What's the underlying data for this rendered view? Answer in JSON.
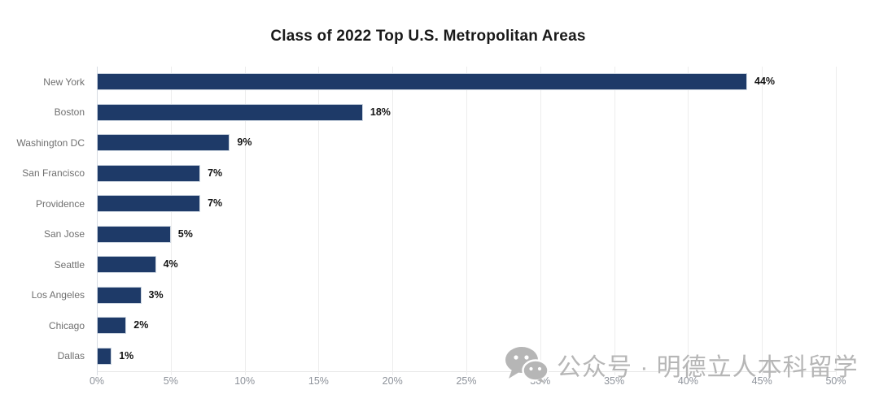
{
  "title": "Class of 2022 Top U.S. Metropolitan Areas",
  "chart_data": {
    "type": "bar",
    "orientation": "horizontal",
    "title": "Class of 2022 Top U.S. Metropolitan Areas",
    "categories": [
      "New York",
      "Boston",
      "Washington DC",
      "San Francisco",
      "Providence",
      "San Jose",
      "Seattle",
      "Los Angeles",
      "Chicago",
      "Dallas"
    ],
    "values": [
      44,
      18,
      9,
      7,
      7,
      5,
      4,
      3,
      2,
      1
    ],
    "value_labels": [
      "44%",
      "18%",
      "9%",
      "7%",
      "7%",
      "5%",
      "4%",
      "3%",
      "2%",
      "1%"
    ],
    "xlabel": "",
    "ylabel": "",
    "xlim": [
      0,
      50
    ],
    "x_tick_values": [
      0,
      5,
      10,
      15,
      20,
      25,
      30,
      35,
      40,
      45,
      50
    ],
    "x_tick_labels": [
      "0%",
      "5%",
      "10%",
      "15%",
      "20%",
      "25%",
      "30%",
      "35%",
      "40%",
      "45%",
      "50%"
    ],
    "grid": "vertical-on",
    "legend": "none",
    "bar_color": "#1e3a68"
  },
  "watermark": {
    "icon": "wechat-icon",
    "text": "公众号 · 明德立人本科留学",
    "color": "#b6b6b6"
  }
}
